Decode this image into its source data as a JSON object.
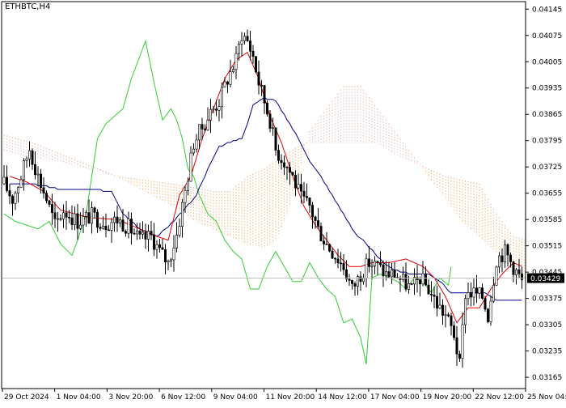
{
  "symbol": "ETHBTC,H4",
  "colors": {
    "background": "#ffffff",
    "frame": "#000000",
    "candle": "#000000",
    "tenkan": "#e00000",
    "kijun": "#00008b",
    "chikou": "#32cd32",
    "cloud_bull": "#e8c8c8",
    "cloud_bear": "#f0c090",
    "current_price_line": "#c0c0c0"
  },
  "chart_data": {
    "type": "candlestick",
    "title": "ETHBTC,H4",
    "indicator": "Ichimoku Kinko Hyo",
    "ylim": [
      0.03135,
      0.04165
    ],
    "y_ticks": [
      "0.04145",
      "0.04075",
      "0.04005",
      "0.03935",
      "0.03865",
      "0.03795",
      "0.03725",
      "0.03655",
      "0.03585",
      "0.03515",
      "0.03445",
      "0.03375",
      "0.03305",
      "0.03235",
      "0.03165"
    ],
    "x_ticks": [
      "29 Oct 2024",
      "1 Nov 04:00",
      "3 Nov 20:00",
      "6 Nov 12:00",
      "9 Nov 04:00",
      "11 Nov 20:00",
      "14 Nov 12:00",
      "17 Nov 04:00",
      "19 Nov 20:00",
      "22 Nov 12:00",
      "25 Nov 04:00"
    ],
    "current_price": "0.03429",
    "price_keypoints": [
      [
        0,
        0.0368
      ],
      [
        3,
        0.0364
      ],
      [
        6,
        0.037
      ],
      [
        9,
        0.03775
      ],
      [
        12,
        0.037
      ],
      [
        15,
        0.0364
      ],
      [
        18,
        0.0357
      ],
      [
        21,
        0.0361
      ],
      [
        26,
        0.0358
      ],
      [
        31,
        0.03595
      ],
      [
        36,
        0.03575
      ],
      [
        40,
        0.03585
      ],
      [
        44,
        0.03565
      ],
      [
        48,
        0.0353
      ],
      [
        52,
        0.0354
      ],
      [
        55,
        0.035
      ],
      [
        58,
        0.0347
      ],
      [
        61,
        0.03545
      ],
      [
        64,
        0.0366
      ],
      [
        67,
        0.0379
      ],
      [
        70,
        0.0383
      ],
      [
        73,
        0.0387
      ],
      [
        76,
        0.039
      ],
      [
        79,
        0.0396
      ],
      [
        82,
        0.0401
      ],
      [
        84,
        0.0408
      ],
      [
        86,
        0.0406
      ],
      [
        88,
        0.0402
      ],
      [
        90,
        0.0395
      ],
      [
        92,
        0.039
      ],
      [
        94,
        0.0385
      ],
      [
        96,
        0.0377
      ],
      [
        99,
        0.0374
      ],
      [
        102,
        0.037
      ],
      [
        105,
        0.0364
      ],
      [
        108,
        0.0362
      ],
      [
        111,
        0.0356
      ],
      [
        114,
        0.0352
      ],
      [
        117,
        0.0349
      ],
      [
        120,
        0.0346
      ],
      [
        123,
        0.034
      ],
      [
        126,
        0.0344
      ],
      [
        129,
        0.0347
      ],
      [
        132,
        0.0346
      ],
      [
        135,
        0.0344
      ],
      [
        138,
        0.0344
      ],
      [
        141,
        0.0342
      ],
      [
        144,
        0.034
      ],
      [
        147,
        0.0343
      ],
      [
        150,
        0.034
      ],
      [
        153,
        0.0336
      ],
      [
        156,
        0.0333
      ],
      [
        159,
        0.0328
      ],
      [
        161,
        0.03195
      ],
      [
        163,
        0.0339
      ],
      [
        166,
        0.0339
      ],
      [
        169,
        0.0338
      ],
      [
        171,
        0.0333
      ],
      [
        174,
        0.0348
      ],
      [
        177,
        0.035
      ],
      [
        180,
        0.0346
      ],
      [
        183,
        0.0342
      ]
    ],
    "tenkan_keypoints": [
      [
        2,
        0.037
      ],
      [
        8,
        0.03685
      ],
      [
        14,
        0.0366
      ],
      [
        20,
        0.0361
      ],
      [
        30,
        0.0359
      ],
      [
        40,
        0.03585
      ],
      [
        48,
        0.0356
      ],
      [
        54,
        0.0354
      ],
      [
        58,
        0.0353
      ],
      [
        62,
        0.0365
      ],
      [
        66,
        0.037
      ],
      [
        70,
        0.038
      ],
      [
        74,
        0.0388
      ],
      [
        78,
        0.0396
      ],
      [
        82,
        0.0401
      ],
      [
        86,
        0.0403
      ],
      [
        90,
        0.0396
      ],
      [
        94,
        0.0386
      ],
      [
        98,
        0.0379
      ],
      [
        102,
        0.037
      ],
      [
        106,
        0.0362
      ],
      [
        110,
        0.0357
      ],
      [
        114,
        0.0353
      ],
      [
        118,
        0.0349
      ],
      [
        122,
        0.0346
      ],
      [
        126,
        0.0346
      ],
      [
        130,
        0.0347
      ],
      [
        136,
        0.0347
      ],
      [
        142,
        0.0348
      ],
      [
        148,
        0.0346
      ],
      [
        152,
        0.0343
      ],
      [
        156,
        0.0338
      ],
      [
        160,
        0.0331
      ],
      [
        164,
        0.0335
      ],
      [
        168,
        0.0335
      ],
      [
        172,
        0.034
      ],
      [
        176,
        0.0344
      ],
      [
        180,
        0.0347
      ],
      [
        183,
        0.0346
      ]
    ],
    "kijun_keypoints": [
      [
        2,
        0.0368
      ],
      [
        10,
        0.0368
      ],
      [
        20,
        0.03665
      ],
      [
        30,
        0.03665
      ],
      [
        38,
        0.0366
      ],
      [
        42,
        0.036
      ],
      [
        48,
        0.0356
      ],
      [
        54,
        0.0354
      ],
      [
        60,
        0.0358
      ],
      [
        68,
        0.0365
      ],
      [
        72,
        0.0372
      ],
      [
        76,
        0.0378
      ],
      [
        80,
        0.0379
      ],
      [
        84,
        0.038
      ],
      [
        86,
        0.0384
      ],
      [
        88,
        0.0389
      ],
      [
        92,
        0.0391
      ],
      [
        96,
        0.039
      ],
      [
        100,
        0.0385
      ],
      [
        104,
        0.038
      ],
      [
        108,
        0.0374
      ],
      [
        112,
        0.037
      ],
      [
        116,
        0.0365
      ],
      [
        120,
        0.036
      ],
      [
        124,
        0.0355
      ],
      [
        128,
        0.0352
      ],
      [
        134,
        0.0347
      ],
      [
        138,
        0.0345
      ],
      [
        144,
        0.0344
      ],
      [
        150,
        0.0344
      ],
      [
        154,
        0.0342
      ],
      [
        158,
        0.0339
      ],
      [
        162,
        0.0339
      ],
      [
        166,
        0.0339
      ],
      [
        170,
        0.0339
      ],
      [
        174,
        0.0337
      ],
      [
        183,
        0.0337
      ]
    ],
    "chikou_keypoints": [
      [
        0,
        0.036
      ],
      [
        4,
        0.0358
      ],
      [
        8,
        0.0357
      ],
      [
        12,
        0.0356
      ],
      [
        16,
        0.0358
      ],
      [
        20,
        0.0352
      ],
      [
        24,
        0.0349
      ],
      [
        26,
        0.0353
      ],
      [
        29,
        0.036
      ],
      [
        33,
        0.038
      ],
      [
        36,
        0.0384
      ],
      [
        39,
        0.0386
      ],
      [
        42,
        0.0388
      ],
      [
        45,
        0.0396
      ],
      [
        48,
        0.0402
      ],
      [
        50,
        0.0406
      ],
      [
        53,
        0.0395
      ],
      [
        56,
        0.0385
      ],
      [
        59,
        0.0388
      ],
      [
        61,
        0.0385
      ],
      [
        63,
        0.038
      ],
      [
        65,
        0.0372
      ],
      [
        67,
        0.037
      ],
      [
        69,
        0.0365
      ],
      [
        72,
        0.036
      ],
      [
        75,
        0.0358
      ],
      [
        78,
        0.0353
      ],
      [
        81,
        0.035
      ],
      [
        84,
        0.0348
      ],
      [
        87,
        0.034
      ],
      [
        90,
        0.034
      ],
      [
        93,
        0.0346
      ],
      [
        96,
        0.035
      ],
      [
        99,
        0.0346
      ],
      [
        102,
        0.0342
      ],
      [
        105,
        0.0342
      ],
      [
        108,
        0.0347
      ],
      [
        111,
        0.0343
      ],
      [
        114,
        0.034
      ],
      [
        117,
        0.0338
      ],
      [
        120,
        0.0331
      ],
      [
        123,
        0.0332
      ],
      [
        126,
        0.0327
      ],
      [
        128,
        0.032
      ],
      [
        130,
        0.0343
      ],
      [
        133,
        0.0344
      ],
      [
        136,
        0.0343
      ],
      [
        139,
        0.0342
      ],
      [
        142,
        0.034
      ],
      [
        145,
        0.0343
      ],
      [
        148,
        0.0342
      ],
      [
        151,
        0.0339
      ],
      [
        154,
        0.0343
      ],
      [
        157,
        0.0341
      ],
      [
        158,
        0.0346
      ]
    ],
    "span_a_keypoints": [
      [
        0,
        0.0381
      ],
      [
        10,
        0.0379
      ],
      [
        20,
        0.0376
      ],
      [
        30,
        0.0373
      ],
      [
        40,
        0.037
      ],
      [
        50,
        0.0366
      ],
      [
        60,
        0.0362
      ],
      [
        68,
        0.0358
      ],
      [
        74,
        0.0356
      ],
      [
        80,
        0.0354
      ],
      [
        86,
        0.0352
      ],
      [
        92,
        0.0351
      ],
      [
        96,
        0.0353
      ],
      [
        100,
        0.036
      ],
      [
        104,
        0.037
      ],
      [
        108,
        0.0382
      ],
      [
        112,
        0.0386
      ],
      [
        116,
        0.039
      ],
      [
        120,
        0.0394
      ],
      [
        126,
        0.0394
      ],
      [
        132,
        0.0388
      ],
      [
        138,
        0.0382
      ],
      [
        144,
        0.0376
      ],
      [
        150,
        0.037
      ],
      [
        156,
        0.0364
      ],
      [
        162,
        0.0358
      ],
      [
        168,
        0.0354
      ],
      [
        174,
        0.035
      ],
      [
        180,
        0.0345
      ],
      [
        190,
        0.034
      ]
    ],
    "span_b_keypoints": [
      [
        0,
        0.0377
      ],
      [
        10,
        0.0375
      ],
      [
        20,
        0.0374
      ],
      [
        30,
        0.0372
      ],
      [
        40,
        0.037
      ],
      [
        50,
        0.0369
      ],
      [
        60,
        0.0368
      ],
      [
        68,
        0.0367
      ],
      [
        74,
        0.0366
      ],
      [
        80,
        0.0366
      ],
      [
        86,
        0.037
      ],
      [
        92,
        0.0372
      ],
      [
        96,
        0.0374
      ],
      [
        100,
        0.0376
      ],
      [
        104,
        0.0378
      ],
      [
        108,
        0.0379
      ],
      [
        112,
        0.0379
      ],
      [
        120,
        0.0379
      ],
      [
        126,
        0.0379
      ],
      [
        132,
        0.0379
      ],
      [
        138,
        0.0376
      ],
      [
        144,
        0.0374
      ],
      [
        150,
        0.0372
      ],
      [
        156,
        0.037
      ],
      [
        162,
        0.0369
      ],
      [
        168,
        0.0368
      ],
      [
        174,
        0.036
      ],
      [
        180,
        0.0354
      ],
      [
        190,
        0.0352
      ]
    ]
  }
}
